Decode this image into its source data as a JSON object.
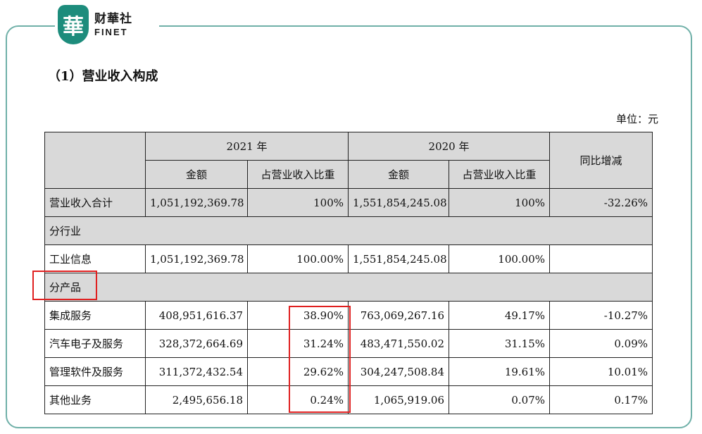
{
  "brand": {
    "logo_char": "華",
    "name_cn": "财華社",
    "name_en": "FINET",
    "color": "#1d8c7c"
  },
  "title": "（1）营业收入构成",
  "unit": "单位：元",
  "headers": {
    "year2021": "2021 年",
    "year2020": "2020 年",
    "amount": "金额",
    "share": "占营业收入比重",
    "yoy": "同比增减"
  },
  "rows": {
    "total": {
      "label": "营业收入合计",
      "amt2021": "1,051,192,369.78",
      "pct2021": "100%",
      "amt2020": "1,551,854,245.08",
      "pct2020": "100%",
      "yoy": "-32.26%"
    },
    "industry_header": "分行业",
    "industry": {
      "label": "工业信息",
      "amt2021": "1,051,192,369.78",
      "pct2021": "100.00%",
      "amt2020": "1,551,854,245.08",
      "pct2020": "100.00%",
      "yoy": ""
    },
    "product_header": "分产品",
    "products": [
      {
        "label": "集成服务",
        "amt2021": "408,951,616.37",
        "pct2021": "38.90%",
        "amt2020": "763,069,267.16",
        "pct2020": "49.17%",
        "yoy": "-10.27%"
      },
      {
        "label": "汽车电子及服务",
        "amt2021": "328,372,664.69",
        "pct2021": "31.24%",
        "amt2020": "483,471,550.02",
        "pct2020": "31.15%",
        "yoy": "0.09%"
      },
      {
        "label": "管理软件及服务",
        "amt2021": "311,372,432.54",
        "pct2021": "29.62%",
        "amt2020": "304,247,508.84",
        "pct2020": "19.61%",
        "yoy": "10.01%"
      },
      {
        "label": "其他业务",
        "amt2021": "2,495,656.18",
        "pct2021": "0.24%",
        "amt2020": "1,065,919.06",
        "pct2020": "0.07%",
        "yoy": "0.17%"
      }
    ]
  },
  "highlight_color": "#e02020"
}
